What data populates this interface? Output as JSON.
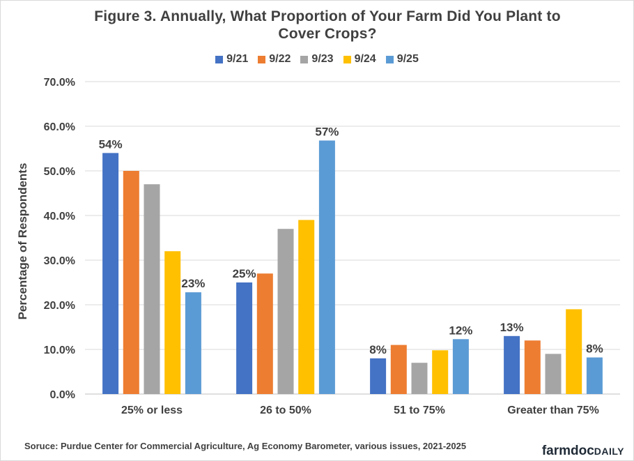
{
  "chart_data": {
    "type": "bar",
    "title_line1": "Figure 3. Annually, What Proportion of Your Farm Did You Plant to",
    "title_line2": "Cover Crops?",
    "ylabel": "Percentage of Respondents",
    "xlabel": "",
    "ylim": [
      0,
      70
    ],
    "yticks": [
      "0.0%",
      "10.0%",
      "20.0%",
      "30.0%",
      "40.0%",
      "50.0%",
      "60.0%",
      "70.0%"
    ],
    "categories": [
      "25% or less",
      "26 to 50%",
      "51 to 75%",
      "Greater than 75%"
    ],
    "legend_position": "top",
    "grid": "horizontal",
    "series": [
      {
        "name": "9/21",
        "color": "#4472C4",
        "values": [
          54,
          25,
          8,
          13
        ],
        "labels": [
          "54%",
          "25%",
          "8%",
          "13%"
        ]
      },
      {
        "name": "9/22",
        "color": "#ED7D31",
        "values": [
          50,
          27,
          11,
          12
        ],
        "labels": [
          "",
          "",
          "",
          ""
        ]
      },
      {
        "name": "9/23",
        "color": "#A5A5A5",
        "values": [
          47,
          37,
          7,
          9
        ],
        "labels": [
          "",
          "",
          "",
          ""
        ]
      },
      {
        "name": "9/24",
        "color": "#FFC000",
        "values": [
          32,
          39,
          9.8,
          19
        ],
        "labels": [
          "",
          "",
          "",
          ""
        ]
      },
      {
        "name": "9/25",
        "color": "#5B9BD5",
        "values": [
          22.8,
          56.8,
          12.3,
          8.2
        ],
        "labels": [
          "23%",
          "57%",
          "12%",
          "8%"
        ]
      }
    ]
  },
  "source": "Soruce: Purdue Center for Commercial Agriculture, Ag Economy Barometer, various issues,  2021-2025",
  "logo": {
    "part1": "farmdoc",
    "part2": "DAILY"
  }
}
